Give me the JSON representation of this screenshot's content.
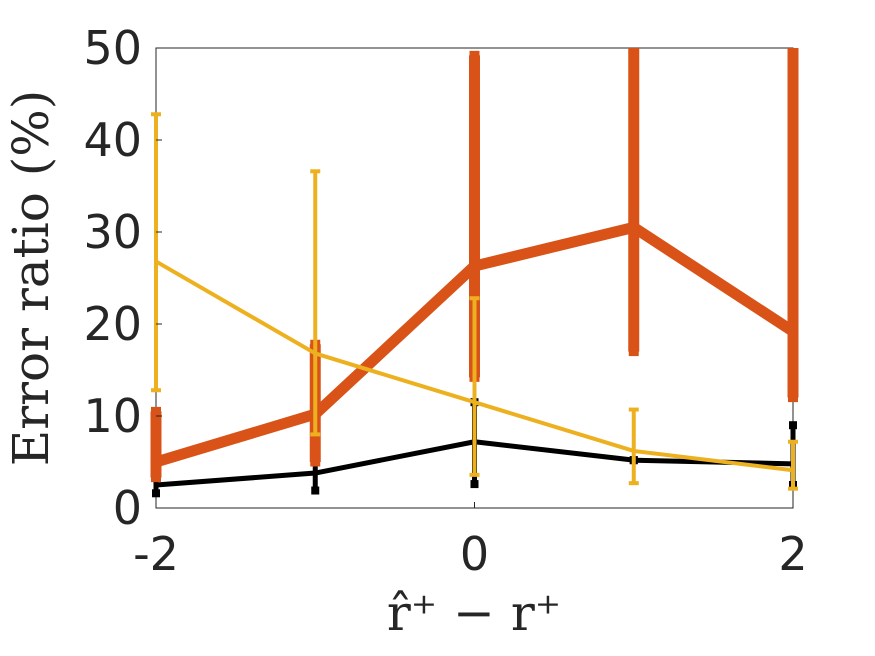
{
  "chart_data": {
    "type": "line",
    "title": "",
    "xlabel": "r̂⁺ − r⁺",
    "ylabel": "Error ratio (%)",
    "x": [
      -2,
      -1,
      0,
      1,
      2
    ],
    "xlim": [
      -2,
      2
    ],
    "ylim": [
      0,
      50
    ],
    "xticks": [
      "-2",
      "0",
      "2"
    ],
    "yticks": [
      "0",
      "10",
      "20",
      "30",
      "40",
      "50"
    ],
    "grid": false,
    "legend": "none",
    "series": [
      {
        "color": "#000000",
        "values": [
          2.5,
          3.8,
          7.2,
          5.2,
          4.8
        ],
        "lower": [
          1.6,
          1.9,
          2.6,
          5.2,
          2.5
        ],
        "upper": [
          4.5,
          5.5,
          11.5,
          5.2,
          9.0
        ]
      },
      {
        "color": "#D95319",
        "values": [
          5.0,
          10.2,
          26.3,
          30.5,
          19.2
        ],
        "lower": [
          3.3,
          5.0,
          14.2,
          17.0,
          12.0
        ],
        "upper": [
          10.5,
          17.8,
          49.2,
          50.0,
          50.0
        ]
      },
      {
        "color": "#EDB120",
        "values": [
          26.8,
          16.8,
          11.5,
          6.2,
          4.1
        ],
        "lower": [
          12.8,
          8.0,
          3.6,
          2.7,
          2.1
        ],
        "upper": [
          42.8,
          36.6,
          22.8,
          10.7,
          7.2
        ]
      }
    ]
  }
}
